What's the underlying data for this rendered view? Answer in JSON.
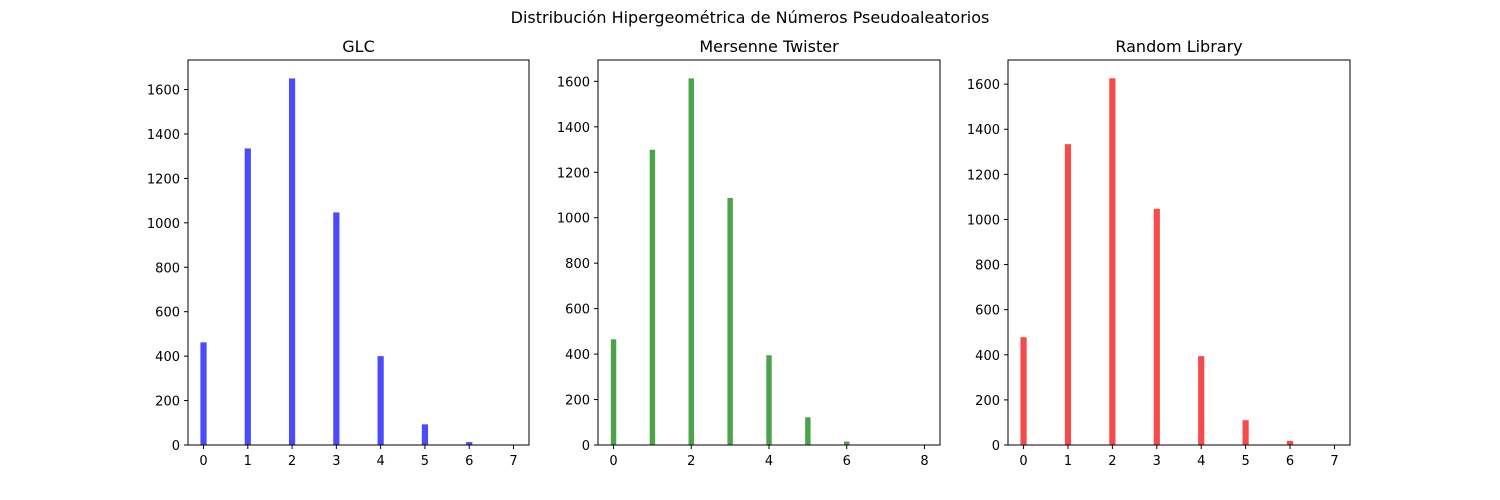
{
  "figure": {
    "suptitle": "Distribución Hipergeométrica de Números Pseudoaleatorios"
  },
  "chart_data": [
    {
      "type": "bar",
      "title": "GLC",
      "xlabel": "",
      "ylabel": "",
      "color": "#4b4bfb",
      "x": [
        0,
        1,
        2,
        3,
        4,
        5,
        6
      ],
      "values": [
        462,
        1335,
        1650,
        1047,
        400,
        93,
        13
      ],
      "xlim": [
        -0.35,
        7.35
      ],
      "ylim": [
        0,
        1733
      ],
      "xticks": [
        0,
        1,
        2,
        3,
        4,
        5,
        6,
        7
      ],
      "yticks": [
        0,
        200,
        400,
        600,
        800,
        1000,
        1200,
        1400,
        1600
      ],
      "grid": false
    },
    {
      "type": "bar",
      "title": "Mersenne Twister",
      "xlabel": "",
      "ylabel": "",
      "color": "#4ca34c",
      "x": [
        0,
        1,
        2,
        3,
        4,
        5,
        6
      ],
      "values": [
        465,
        1299,
        1613,
        1087,
        395,
        122,
        15
      ],
      "xlim": [
        -0.4,
        8.4
      ],
      "ylim": [
        0,
        1694
      ],
      "xticks": [
        0,
        2,
        4,
        6,
        8
      ],
      "yticks": [
        0,
        200,
        400,
        600,
        800,
        1000,
        1200,
        1400,
        1600
      ],
      "grid": false
    },
    {
      "type": "bar",
      "title": "Random Library",
      "xlabel": "",
      "ylabel": "",
      "color": "#f44c4c",
      "x": [
        0,
        1,
        2,
        3,
        4,
        5,
        6
      ],
      "values": [
        478,
        1334,
        1626,
        1047,
        394,
        110,
        18
      ],
      "xlim": [
        -0.35,
        7.35
      ],
      "ylim": [
        0,
        1707
      ],
      "xticks": [
        0,
        1,
        2,
        3,
        4,
        5,
        6,
        7
      ],
      "yticks": [
        0,
        200,
        400,
        600,
        800,
        1000,
        1200,
        1400,
        1600
      ],
      "grid": false
    }
  ]
}
